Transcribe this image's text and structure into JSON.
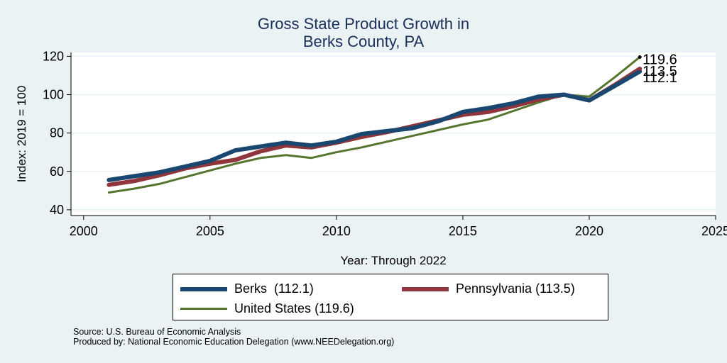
{
  "chart_data": {
    "type": "line",
    "title": [
      "Gross State Product Growth in",
      "Berks County, PA"
    ],
    "xlabel": "Year: Through 2022",
    "ylabel": "Index: 2019 = 100",
    "xlim": [
      1999.5,
      2025
    ],
    "ylim": [
      37,
      122
    ],
    "xticks": [
      2000,
      2005,
      2010,
      2015,
      2020,
      2025
    ],
    "yticks": [
      40,
      60,
      80,
      100,
      120
    ],
    "grid": true,
    "legend_position": "bottom",
    "x": [
      2001,
      2002,
      2003,
      2004,
      2005,
      2006,
      2007,
      2008,
      2009,
      2010,
      2011,
      2012,
      2013,
      2014,
      2015,
      2016,
      2017,
      2018,
      2019,
      2020,
      2021,
      2022
    ],
    "series": [
      {
        "name": "Berks  (112.1)",
        "color": "#1a476f",
        "values": [
          55.5,
          57.5,
          59.5,
          62.5,
          65.5,
          71.0,
          73.0,
          75.0,
          73.5,
          75.5,
          79.5,
          81.0,
          82.5,
          86.0,
          91.0,
          93.0,
          95.5,
          99.0,
          100.0,
          97.0,
          104.5,
          112.1
        ],
        "end_label": "112.1"
      },
      {
        "name": "Pennsylvania (113.5)",
        "color": "#90353b",
        "values": [
          53.0,
          55.0,
          58.0,
          61.5,
          64.0,
          66.0,
          70.5,
          73.5,
          72.5,
          75.0,
          78.0,
          80.5,
          83.5,
          86.5,
          89.5,
          91.0,
          94.0,
          97.5,
          100.0,
          97.0,
          105.0,
          113.5
        ],
        "end_label": "113.5"
      },
      {
        "name": "United States (119.6)",
        "color": "#55752f",
        "values": [
          49.0,
          51.0,
          53.5,
          57.0,
          60.5,
          64.0,
          67.0,
          68.5,
          67.0,
          70.0,
          72.5,
          75.5,
          78.5,
          81.5,
          84.5,
          87.0,
          91.5,
          96.0,
          100.0,
          99.0,
          109.0,
          119.6
        ],
        "end_label": "119.6"
      }
    ]
  },
  "footer": {
    "source": "Source: U.S. Bureau of Economic Analysis",
    "produced": "Produced by: National Economic Education Delegation (www.NEEDelegation.org)"
  }
}
